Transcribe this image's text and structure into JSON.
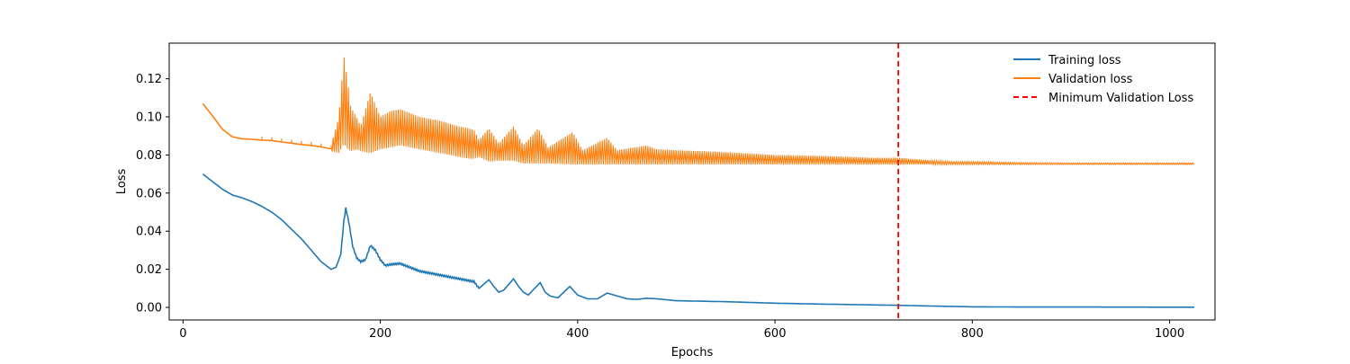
{
  "chart_data": {
    "type": "line",
    "title": "",
    "xlabel": "Epochs",
    "ylabel": "Loss",
    "xlim": [
      -14,
      1046
    ],
    "ylim": [
      -0.0066,
      0.1387
    ],
    "x_ticks": [
      0,
      200,
      400,
      600,
      800,
      1000
    ],
    "y_ticks": [
      0.0,
      0.02,
      0.04,
      0.06,
      0.08,
      0.1,
      0.12
    ],
    "x_tick_labels": [
      "0",
      "200",
      "400",
      "600",
      "800",
      "1000"
    ],
    "y_tick_labels": [
      "0.00",
      "0.02",
      "0.04",
      "0.06",
      "0.08",
      "0.10",
      "0.12"
    ],
    "grid": false,
    "legend_position": "top-right",
    "series": [
      {
        "name": "Training loss",
        "color": "#1f77b4",
        "style": "solid",
        "x": [
          20,
          30,
          40,
          50,
          60,
          70,
          80,
          90,
          100,
          110,
          120,
          130,
          140,
          150,
          155,
          160,
          163,
          165,
          168,
          172,
          176,
          180,
          185,
          190,
          195,
          200,
          205,
          210,
          220,
          240,
          260,
          280,
          295,
          300,
          310,
          315,
          320,
          325,
          335,
          340,
          345,
          350,
          362,
          367,
          372,
          380,
          392,
          400,
          410,
          420,
          430,
          440,
          450,
          460,
          470,
          480,
          500,
          550,
          600,
          650,
          700,
          725,
          750,
          800,
          850,
          900,
          1000,
          1025
        ],
        "y": [
          0.07,
          0.066,
          0.062,
          0.059,
          0.0575,
          0.0555,
          0.053,
          0.05,
          0.046,
          0.041,
          0.036,
          0.03,
          0.024,
          0.02,
          0.021,
          0.028,
          0.045,
          0.052,
          0.045,
          0.032,
          0.026,
          0.024,
          0.025,
          0.0325,
          0.03,
          0.025,
          0.022,
          0.0225,
          0.023,
          0.019,
          0.017,
          0.015,
          0.0135,
          0.01,
          0.0145,
          0.011,
          0.008,
          0.009,
          0.015,
          0.011,
          0.008,
          0.0065,
          0.013,
          0.008,
          0.006,
          0.005,
          0.011,
          0.0065,
          0.0045,
          0.0045,
          0.0075,
          0.006,
          0.0045,
          0.0042,
          0.0048,
          0.0045,
          0.0035,
          0.003,
          0.0022,
          0.0017,
          0.0013,
          0.0011,
          0.0008,
          0.0003,
          0.0002,
          0.0002,
          0.0001,
          0.0001
        ]
      },
      {
        "name": "Validation loss",
        "color": "#ff7f0e",
        "style": "solid",
        "x": [
          20,
          30,
          40,
          45,
          50,
          60,
          70,
          80,
          90,
          100,
          110,
          120,
          130,
          140,
          150,
          155,
          160,
          163,
          165,
          168,
          172,
          176,
          180,
          185,
          190,
          195,
          200,
          210,
          220,
          240,
          260,
          280,
          300,
          310,
          320,
          335,
          345,
          360,
          370,
          395,
          405,
          430,
          440,
          470,
          480,
          500,
          550,
          600,
          650,
          700,
          725,
          750,
          800,
          850,
          900,
          1000,
          1025
        ],
        "y": [
          0.107,
          0.1005,
          0.0935,
          0.0915,
          0.0895,
          0.0885,
          0.0882,
          0.0878,
          0.0875,
          0.0868,
          0.0862,
          0.0855,
          0.085,
          0.0842,
          0.0832,
          0.0835,
          0.092,
          0.098,
          0.097,
          0.093,
          0.092,
          0.091,
          0.09,
          0.0915,
          0.093,
          0.091,
          0.089,
          0.0895,
          0.0905,
          0.0885,
          0.0875,
          0.086,
          0.0835,
          0.0855,
          0.0805,
          0.0865,
          0.08,
          0.0845,
          0.0795,
          0.0825,
          0.0788,
          0.0815,
          0.0785,
          0.0792,
          0.0782,
          0.0778,
          0.0775,
          0.0772,
          0.0768,
          0.0764,
          0.0762,
          0.076,
          0.0756,
          0.0755,
          0.0755,
          0.0755,
          0.0755
        ],
        "band_x": [
          150,
          158,
          163,
          167,
          170,
          176,
          180,
          190,
          200,
          210,
          220,
          230,
          240,
          260,
          280,
          290,
          295,
          300,
          310,
          320,
          335,
          345,
          360,
          370,
          395,
          405,
          430,
          440,
          470,
          480,
          500,
          550,
          600,
          650,
          700,
          725,
          750,
          780,
          800,
          850,
          900,
          1000,
          1025
        ],
        "band_upper": [
          0.085,
          0.1,
          0.132,
          0.118,
          0.105,
          0.1,
          0.095,
          0.113,
          0.1,
          0.103,
          0.104,
          0.102,
          0.1,
          0.098,
          0.095,
          0.094,
          0.093,
          0.088,
          0.094,
          0.086,
          0.095,
          0.085,
          0.094,
          0.084,
          0.092,
          0.0825,
          0.089,
          0.0825,
          0.085,
          0.083,
          0.0825,
          0.0815,
          0.08,
          0.0795,
          0.0785,
          0.0785,
          0.0775,
          0.0765,
          0.0765,
          0.076,
          0.0758,
          0.0758,
          0.0758
        ],
        "band_lower": [
          0.082,
          0.081,
          0.086,
          0.083,
          0.082,
          0.083,
          0.082,
          0.081,
          0.083,
          0.084,
          0.085,
          0.084,
          0.083,
          0.081,
          0.079,
          0.078,
          0.078,
          0.079,
          0.0765,
          0.077,
          0.077,
          0.0755,
          0.0755,
          0.0755,
          0.075,
          0.075,
          0.075,
          0.075,
          0.075,
          0.075,
          0.075,
          0.075,
          0.075,
          0.075,
          0.075,
          0.075,
          0.075,
          0.075,
          0.075,
          0.075,
          0.075,
          0.075,
          0.075
        ]
      },
      {
        "name": "Minimum Validation Loss",
        "color": "#ff0000",
        "style": "dashed",
        "kind": "vline",
        "x_value": 725
      }
    ]
  }
}
